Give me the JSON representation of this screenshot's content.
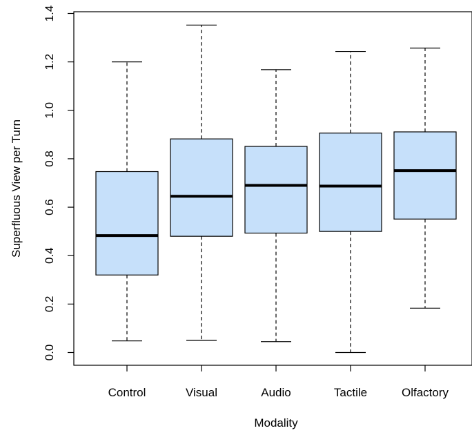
{
  "chart_data": {
    "type": "boxplot",
    "xlabel": "Modality",
    "ylabel": "Superfluous View per Turn",
    "ylim": [
      0,
      1.4
    ],
    "yticks": [
      "0.0",
      "0.2",
      "0.4",
      "0.6",
      "0.8",
      "1.0",
      "1.2",
      "1.4"
    ],
    "box_color": "#c6e0fa",
    "grid": false,
    "categories": [
      "Control",
      "Visual",
      "Audio",
      "Tactile",
      "Olfactory"
    ],
    "boxes": [
      {
        "label": "Control",
        "min": 0.048,
        "q1": 0.32,
        "median": 0.483,
        "q3": 0.747,
        "max": 1.2
      },
      {
        "label": "Visual",
        "min": 0.05,
        "q1": 0.48,
        "median": 0.645,
        "q3": 0.882,
        "max": 1.352
      },
      {
        "label": "Audio",
        "min": 0.045,
        "q1": 0.493,
        "median": 0.69,
        "q3": 0.851,
        "max": 1.168
      },
      {
        "label": "Tactile",
        "min": 0.0,
        "q1": 0.5,
        "median": 0.687,
        "q3": 0.906,
        "max": 1.243
      },
      {
        "label": "Olfactory",
        "min": 0.183,
        "q1": 0.551,
        "median": 0.751,
        "q3": 0.911,
        "max": 1.257
      }
    ]
  }
}
